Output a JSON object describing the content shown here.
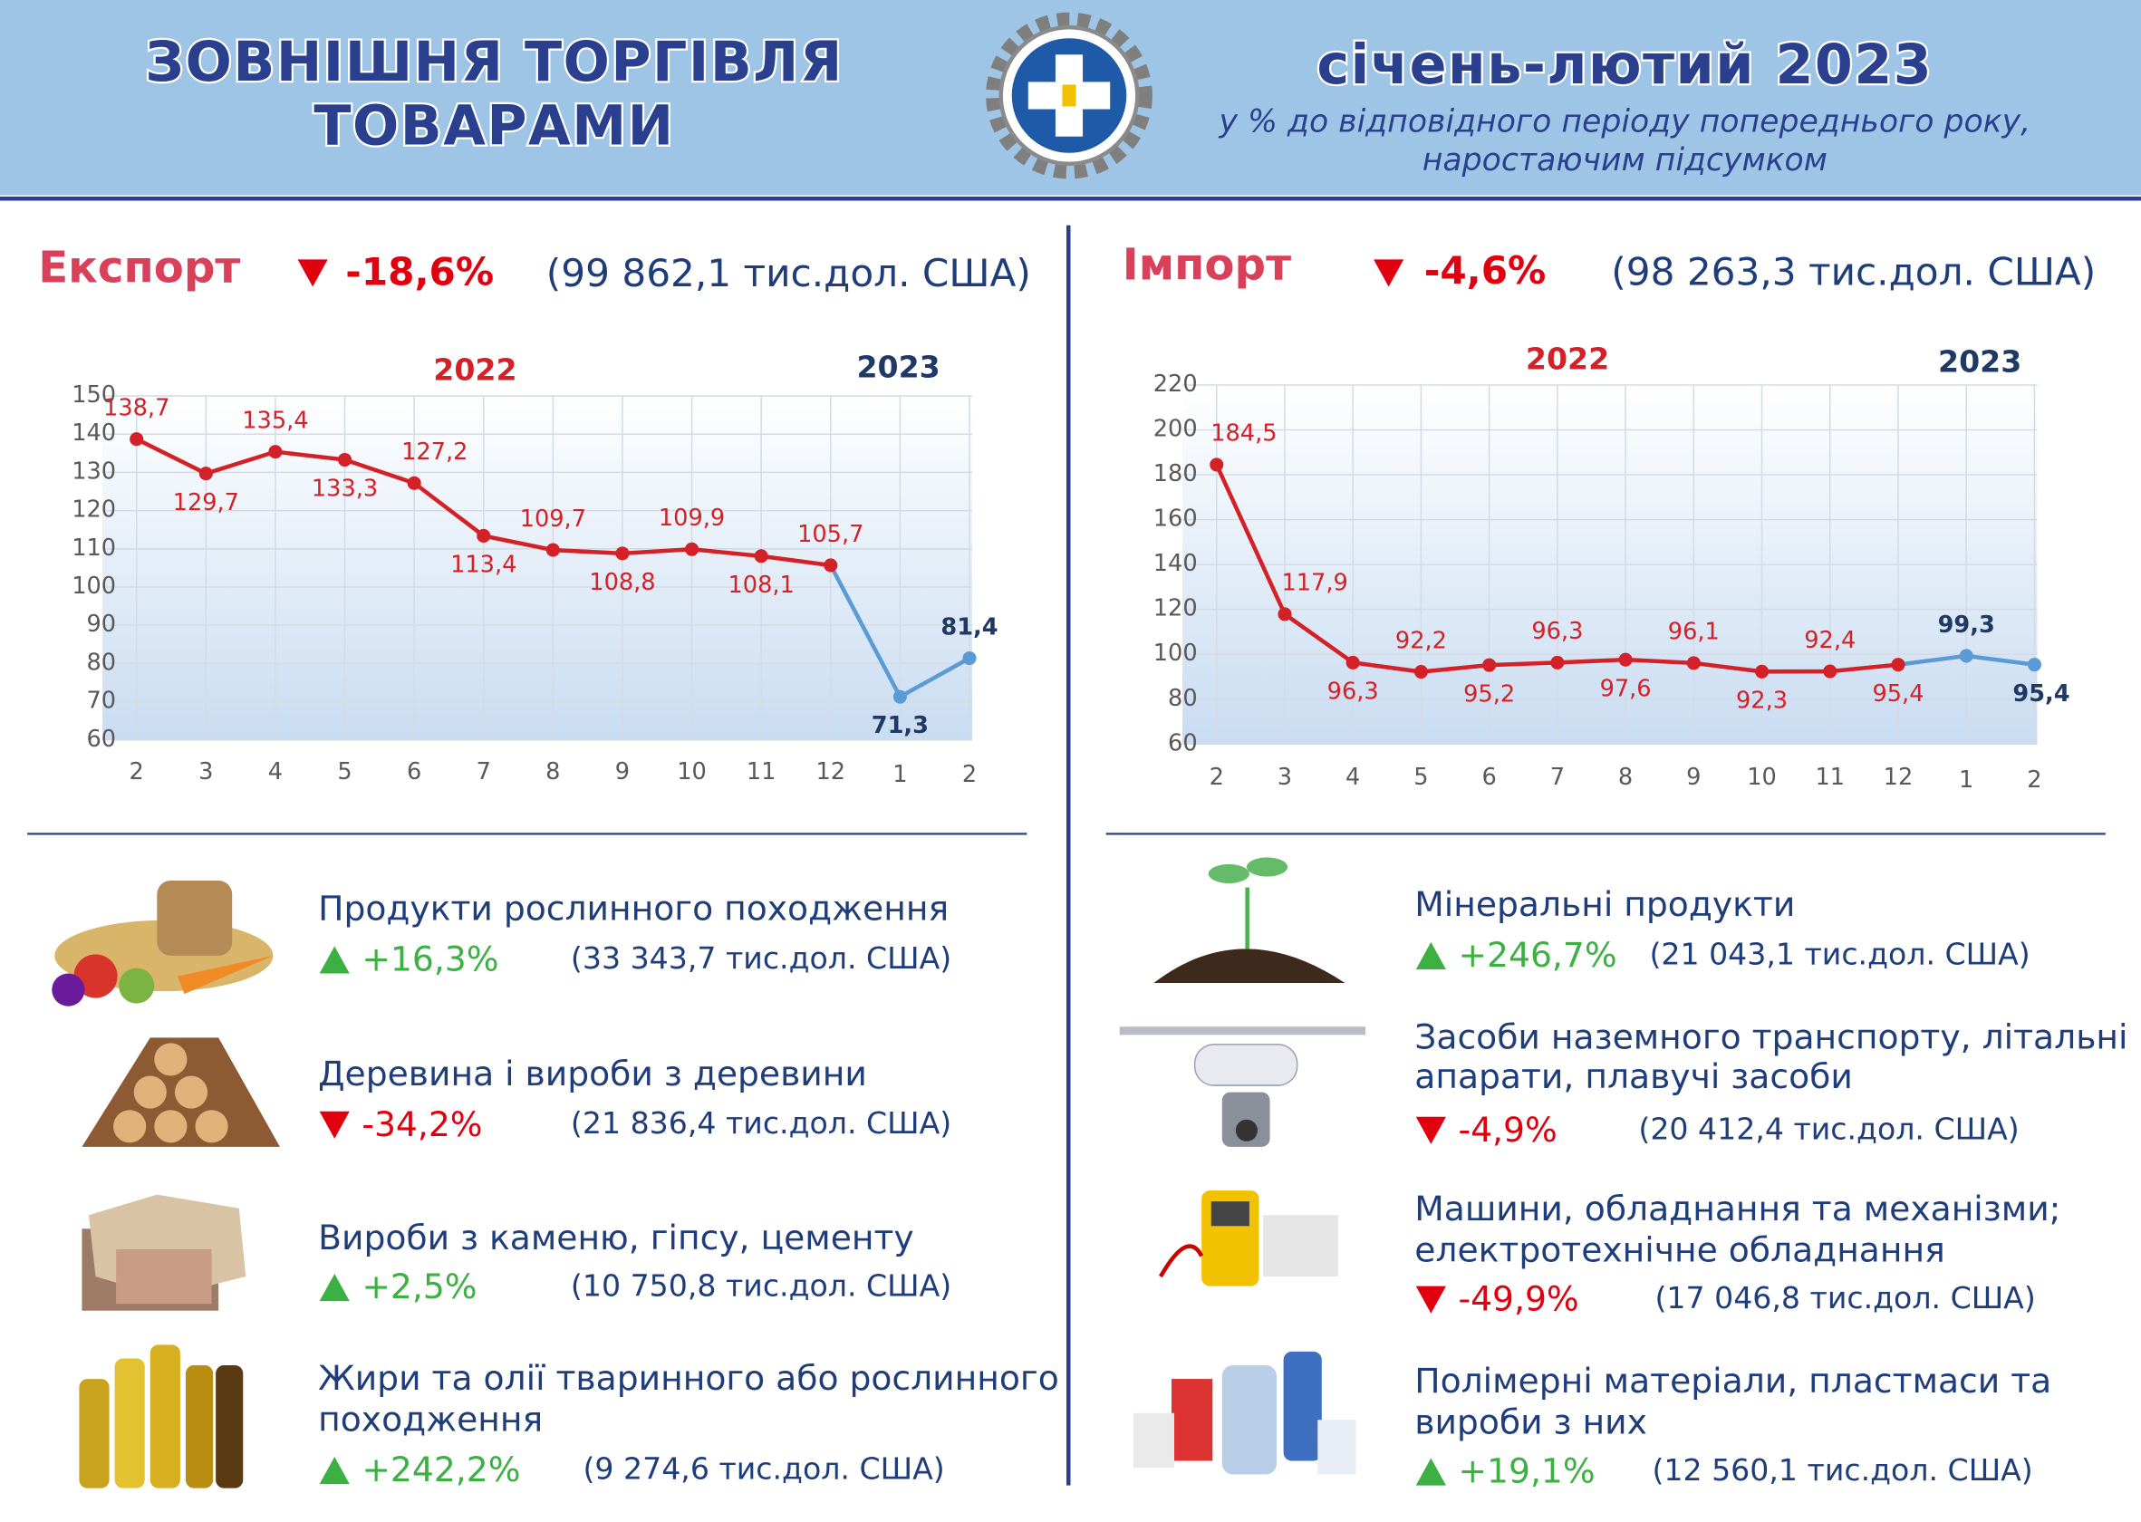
{
  "header": {
    "title": [
      "ЗОВНІШНЯ ТОРГІВЛЯ",
      "ТОВАРАМИ"
    ],
    "period": "січень-лютий 2023",
    "subtitle": [
      "у % до відповідного періоду попереднього року,",
      "наростаючим підсумком"
    ]
  },
  "exports": {
    "label": "Експорт",
    "change": "-18,6%",
    "amount": "(99 862,1 тис.дол. США)",
    "items": [
      {
        "name": [
          "Продукти рослинного походження"
        ],
        "change": "+16,3%",
        "amount": "(33 343,7 тис.дол. США)"
      },
      {
        "name": [
          "Деревина і вироби з деревини"
        ],
        "change": "-34,2%",
        "amount": "(21 836,4 тис.дол. США)"
      },
      {
        "name": [
          "Вироби з каменю, гіпсу, цементу"
        ],
        "change": "+2,5%",
        "amount": "(10 750,8 тис.дол. США)"
      },
      {
        "name": [
          "Жири та олії тваринного або рослинного",
          "походження"
        ],
        "change": "+242,2%",
        "amount": "(9 274,6 тис.дол. США)"
      }
    ]
  },
  "imports": {
    "label": "Імпорт",
    "change": "-4,6%",
    "amount": "(98 263,3 тис.дол. США)",
    "items": [
      {
        "name": [
          "Мінеральні продукти"
        ],
        "change": "+246,7%",
        "amount": "(21 043,1 тис.дол. США)"
      },
      {
        "name": [
          "Засоби наземного транспорту, літальні",
          "апарати, плавучі засоби"
        ],
        "change": "-4,9%",
        "amount": "(20 412,4 тис.дол. США)"
      },
      {
        "name": [
          "Машини, обладнання та механізми;",
          "електротехнічне обладнання"
        ],
        "change": "-49,9%",
        "amount": "(17 046,8 тис.дол. США)"
      },
      {
        "name": [
          "Полімерні матеріали, пластмаси та",
          "вироби з них"
        ],
        "change": "+19,1%",
        "amount": "(12 560,1 тис.дол. США)"
      }
    ]
  },
  "chart_data": [
    {
      "type": "line",
      "annotations": [
        "2022",
        "2023"
      ],
      "categories": [
        "2",
        "3",
        "4",
        "5",
        "6",
        "7",
        "8",
        "9",
        "10",
        "11",
        "12",
        "1",
        "2"
      ],
      "values": [
        138.7,
        129.7,
        135.4,
        133.3,
        127.2,
        113.4,
        109.7,
        108.8,
        109.9,
        108.1,
        105.7,
        71.3,
        81.4
      ],
      "value_labels": [
        "138,7",
        "129,7",
        "135,4",
        "133,3",
        "127,2",
        "113,4",
        "109,7",
        "108,8",
        "109,9",
        "108,1",
        "105,7",
        "71,3",
        "81,4"
      ],
      "colors": [
        "#d42027",
        "#d42027",
        "#d42027",
        "#d42027",
        "#d42027",
        "#d42027",
        "#d42027",
        "#d42027",
        "#d42027",
        "#d42027",
        "#d42027",
        "#5b9bd5",
        "#5b9bd5"
      ],
      "ylim": [
        60,
        150
      ],
      "yticks": [
        60,
        70,
        80,
        90,
        100,
        110,
        120,
        130,
        140,
        150
      ],
      "grid": true
    },
    {
      "type": "line",
      "annotations": [
        "2022",
        "2023"
      ],
      "categories": [
        "2",
        "3",
        "4",
        "5",
        "6",
        "7",
        "8",
        "9",
        "10",
        "11",
        "12",
        "1",
        "2"
      ],
      "values": [
        184.5,
        117.9,
        96.3,
        92.2,
        95.2,
        96.3,
        97.6,
        96.1,
        92.3,
        92.4,
        95.4,
        99.3,
        95.4
      ],
      "value_labels": [
        "184,5",
        "117,9",
        "96,3",
        "92,2",
        "95,2",
        "96,3",
        "97,6",
        "96,1",
        "92,3",
        "92,4",
        "95,4",
        "99,3",
        "95,4"
      ],
      "colors": [
        "#d42027",
        "#d42027",
        "#d42027",
        "#d42027",
        "#d42027",
        "#d42027",
        "#d42027",
        "#d42027",
        "#d42027",
        "#d42027",
        "#d42027",
        "#5b9bd5",
        "#5b9bd5"
      ],
      "ylim": [
        60,
        220
      ],
      "yticks": [
        60,
        80,
        100,
        120,
        140,
        160,
        180,
        200,
        220
      ],
      "grid": true
    }
  ]
}
